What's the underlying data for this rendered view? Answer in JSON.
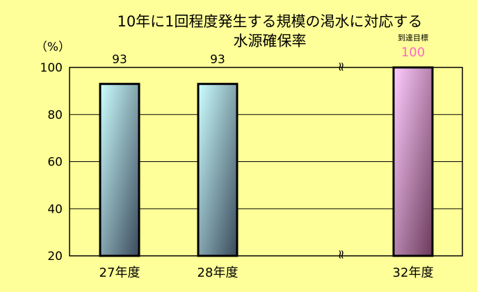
{
  "chart_data": {
    "type": "bar",
    "title_line1": "10年に1回程度発生する規模の渇水に対応する",
    "title_line2": "水源確保率",
    "ylabel": "（%）",
    "ylim": [
      20,
      100
    ],
    "yticks": [
      20,
      40,
      60,
      80,
      100
    ],
    "grid": true,
    "categories": [
      "27年度",
      "28年度",
      "32年度"
    ],
    "values": [
      93,
      93,
      100
    ],
    "value_labels": [
      "93",
      "93",
      "100"
    ],
    "target_label": "到達目標",
    "axis_break": "≈",
    "colors": {
      "background": "#ffff99",
      "bar_light": "#ccffff",
      "bar_dark": "#3a4a5c",
      "target_light": "#ffccff",
      "target_dark": "#6a3a5a",
      "target_text": "#ff66cc",
      "grid": "#000000"
    }
  }
}
